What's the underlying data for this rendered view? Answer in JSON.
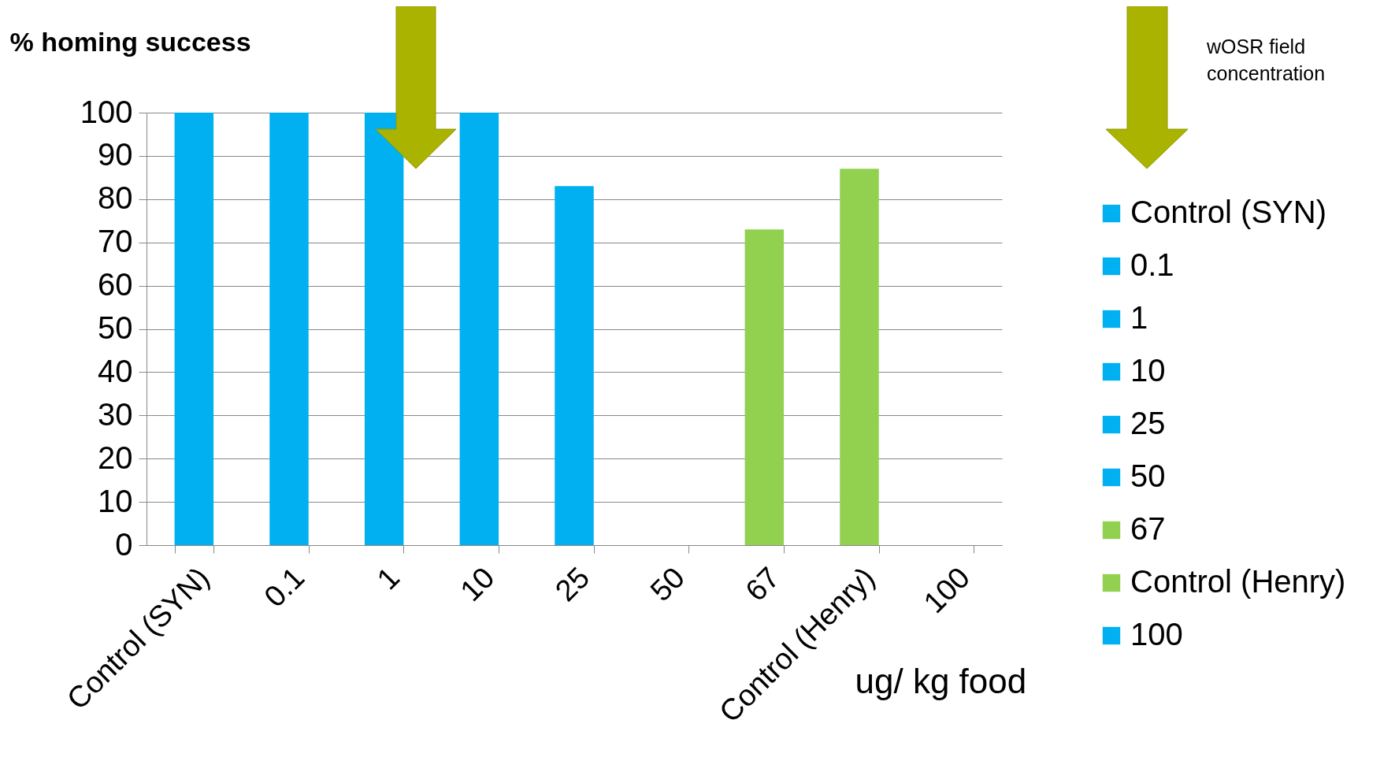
{
  "chart_data": {
    "type": "bar",
    "ylabel": "% homing success",
    "xlabel": "ug/ kg food",
    "categories": [
      "Control (SYN)",
      "0.1",
      "1",
      "10",
      "25",
      "50",
      "67",
      "Control (Henry)",
      "100"
    ],
    "series": [
      {
        "name": "Control (SYN)",
        "color": "#00b0f0",
        "values": [
          100,
          null,
          null,
          null,
          null,
          null,
          null,
          null,
          null
        ]
      },
      {
        "name": "0.1",
        "color": "#00b0f0",
        "values": [
          null,
          100,
          null,
          null,
          null,
          null,
          null,
          null,
          null
        ]
      },
      {
        "name": "1",
        "color": "#00b0f0",
        "values": [
          null,
          null,
          100,
          null,
          null,
          null,
          null,
          null,
          null
        ]
      },
      {
        "name": "10",
        "color": "#00b0f0",
        "values": [
          null,
          null,
          null,
          100,
          null,
          null,
          null,
          null,
          null
        ]
      },
      {
        "name": "25",
        "color": "#00b0f0",
        "values": [
          null,
          null,
          null,
          null,
          83,
          null,
          null,
          null,
          null
        ]
      },
      {
        "name": "50",
        "color": "#00b0f0",
        "values": [
          null,
          null,
          null,
          null,
          null,
          null,
          null,
          null,
          null
        ]
      },
      {
        "name": "67",
        "color": "#92d050",
        "values": [
          null,
          null,
          null,
          null,
          null,
          null,
          73,
          null,
          null
        ]
      },
      {
        "name": "Control (Henry)",
        "color": "#92d050",
        "values": [
          null,
          null,
          null,
          null,
          null,
          null,
          null,
          87,
          null
        ]
      },
      {
        "name": "100",
        "color": "#00b0f0",
        "values": [
          null,
          null,
          null,
          null,
          null,
          null,
          null,
          null,
          null
        ]
      }
    ],
    "ylim": [
      0,
      100
    ],
    "yticks": [
      0,
      10,
      20,
      30,
      40,
      50,
      60,
      70,
      80,
      90,
      100
    ],
    "grid": "y",
    "legend": "right",
    "annotations": [
      "wOSR field concentration"
    ]
  }
}
